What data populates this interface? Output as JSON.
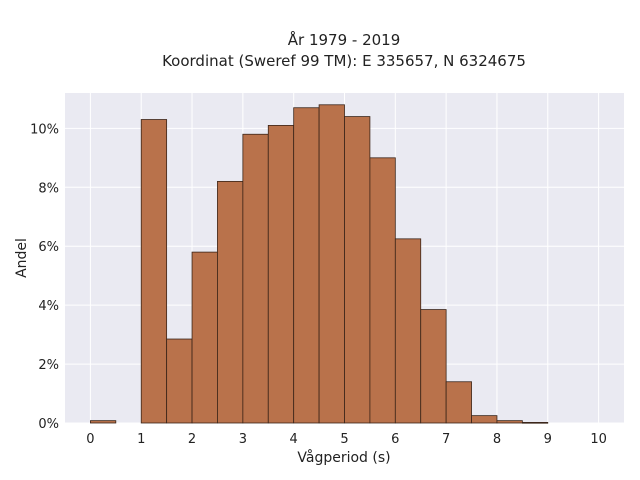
{
  "chart_data": {
    "type": "bar",
    "title_line1": "År 1979 - 2019",
    "title_line2": "Koordinat (Sweref 99 TM): E 335657, N 6324675",
    "xlabel": "Vågperiod (s)",
    "ylabel": "Andel",
    "bin_width": 0.5,
    "bin_starts": [
      0,
      0.5,
      1,
      1.5,
      2,
      2.5,
      3,
      3.5,
      4,
      4.5,
      5,
      5.5,
      6,
      6.5,
      7,
      7.5,
      8,
      8.5,
      9,
      9.5
    ],
    "values": [
      0.08,
      0,
      10.3,
      2.85,
      5.8,
      8.2,
      9.8,
      10.1,
      10.7,
      10.8,
      10.4,
      9.0,
      6.25,
      3.85,
      1.4,
      0.25,
      0.08,
      0.02,
      0,
      0
    ],
    "xlim": [
      -0.5,
      10.5
    ],
    "ylim": [
      0,
      11.2
    ],
    "x_ticks": [
      "0",
      "1",
      "2",
      "3",
      "4",
      "5",
      "6",
      "7",
      "8",
      "9",
      "10"
    ],
    "y_ticks": [
      "0%",
      "2%",
      "4%",
      "6%",
      "8%",
      "10%"
    ],
    "grid": true,
    "colors": {
      "bar_fill": "#b9724b",
      "bar_edge": "#3a2418",
      "plot_background": "#eaeaf2",
      "grid": "#ffffff"
    }
  }
}
